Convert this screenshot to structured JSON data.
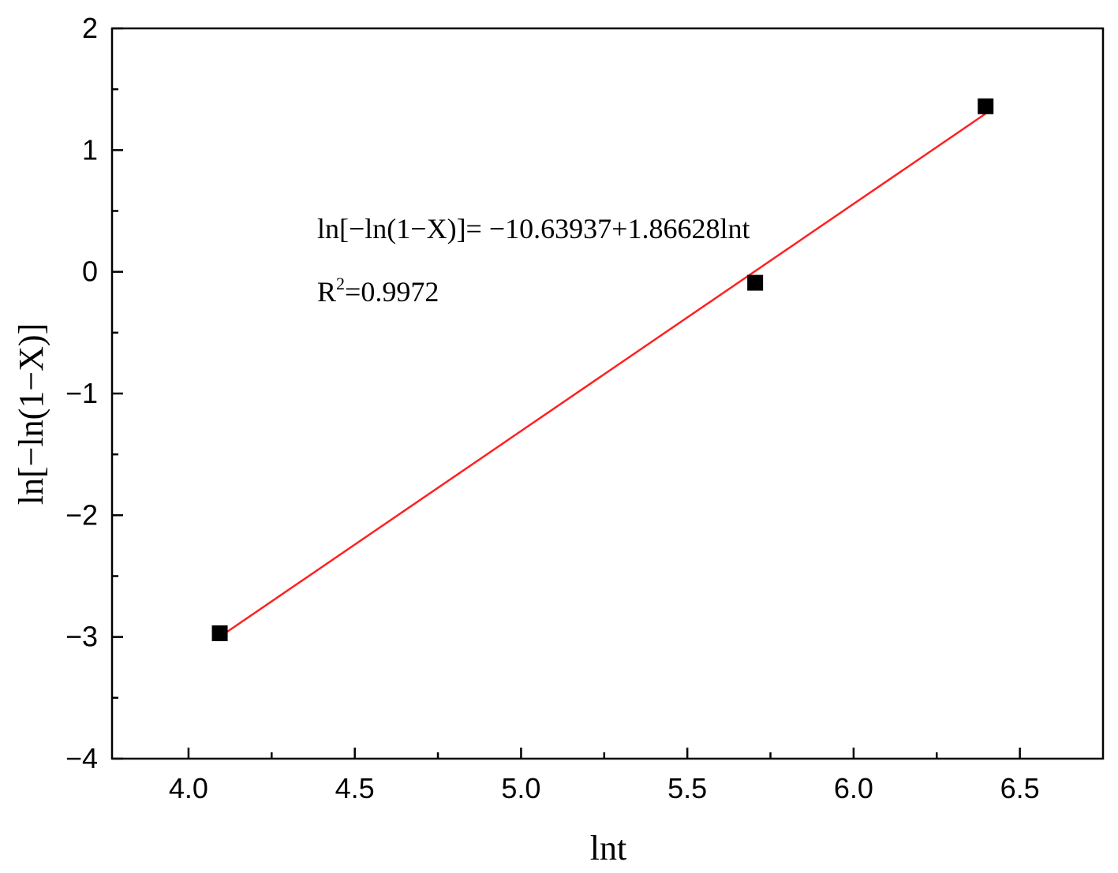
{
  "chart_data": {
    "type": "scatter",
    "title": "",
    "xlabel": "lnt",
    "ylabel": "ln[−ln(1−X)]",
    "xlim": [
      3.77,
      6.75
    ],
    "ylim": [
      -4,
      2
    ],
    "x_ticks": [
      4.0,
      4.5,
      5.0,
      5.5,
      6.0,
      6.5
    ],
    "x_tick_labels": [
      "4.0",
      "4.5",
      "5.0",
      "5.5",
      "6.0",
      "6.5"
    ],
    "y_ticks": [
      -4,
      -3,
      -2,
      -1,
      0,
      1,
      2
    ],
    "y_tick_labels": [
      "−4",
      "−3",
      "−2",
      "−1",
      "0",
      "1",
      "2"
    ],
    "grid": false,
    "legend": "none",
    "series": [
      {
        "kind": "points",
        "marker": "square",
        "color": "#000000",
        "x": [
          4.094,
          5.704,
          6.397
        ],
        "y": [
          -2.97,
          -0.09,
          1.36
        ]
      },
      {
        "kind": "fit-line",
        "color": "#ff2020",
        "intercept": -10.63937,
        "slope": 1.86628,
        "x_range": [
          4.094,
          6.397
        ]
      }
    ],
    "annotations": [
      {
        "id": "equation",
        "text": "ln[−ln(1−X)]= −10.63937+1.86628lnt"
      },
      {
        "id": "r2",
        "prefix": "R",
        "sup": "2",
        "suffix": "=0.9972"
      }
    ]
  }
}
